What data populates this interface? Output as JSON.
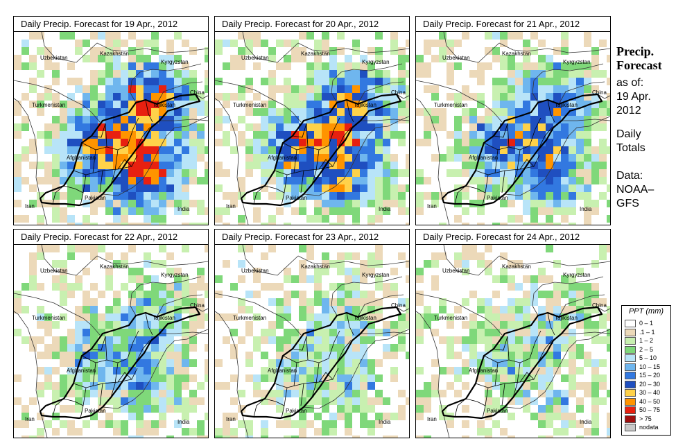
{
  "forecast_info": {
    "title": "Precip. Forecast",
    "as_of_label": "as of:",
    "as_of_date": "19 Apr. 2012",
    "totals": "Daily Totals",
    "data_source": "Data: NOAA– GFS"
  },
  "panels": [
    {
      "title": "Daily Precip. Forecast for  19 Apr., 2012",
      "seed": 11,
      "wet": 1.0
    },
    {
      "title": "Daily Precip. Forecast for  20 Apr., 2012",
      "seed": 23,
      "wet": 0.9
    },
    {
      "title": "Daily Precip. Forecast for  21 Apr., 2012",
      "seed": 37,
      "wet": 0.75
    },
    {
      "title": "Daily Precip. Forecast for  22 Apr., 2012",
      "seed": 41,
      "wet": 0.5
    },
    {
      "title": "Daily Precip. Forecast for  23 Apr., 2012",
      "seed": 53,
      "wet": 0.4
    },
    {
      "title": "Daily Precip. Forecast for  24 Apr., 2012",
      "seed": 67,
      "wet": 0.35
    }
  ],
  "map_labels": [
    "Uzbekistan",
    "Kazakhstan",
    "Kyrgyzstan",
    "China",
    "Turkmenistan",
    "Tajikistan",
    "Afghanistan",
    "Iran",
    "Pakistan",
    "India"
  ],
  "legend": {
    "title": "PPT (mm)",
    "items": [
      {
        "label": "0 – 1",
        "color": "#ffffff"
      },
      {
        "label": ".1 – 1",
        "color": "#ecd9b9"
      },
      {
        "label": "1 – 2",
        "color": "#c8f0b0"
      },
      {
        "label": "2 – 5",
        "color": "#7fd87a"
      },
      {
        "label": "5 – 10",
        "color": "#b8e4f8"
      },
      {
        "label": "10 – 15",
        "color": "#6fb6ee"
      },
      {
        "label": "15 – 20",
        "color": "#3278e0"
      },
      {
        "label": "20 – 30",
        "color": "#1f4fc0"
      },
      {
        "label": "30 – 40",
        "color": "#ffd24a"
      },
      {
        "label": "40 – 50",
        "color": "#ff9400"
      },
      {
        "label": "50 – 75",
        "color": "#e82010"
      },
      {
        "label": "> 75",
        "color": "#a01010"
      },
      {
        "label": "nodata",
        "color": "#c8c8c8"
      }
    ]
  }
}
